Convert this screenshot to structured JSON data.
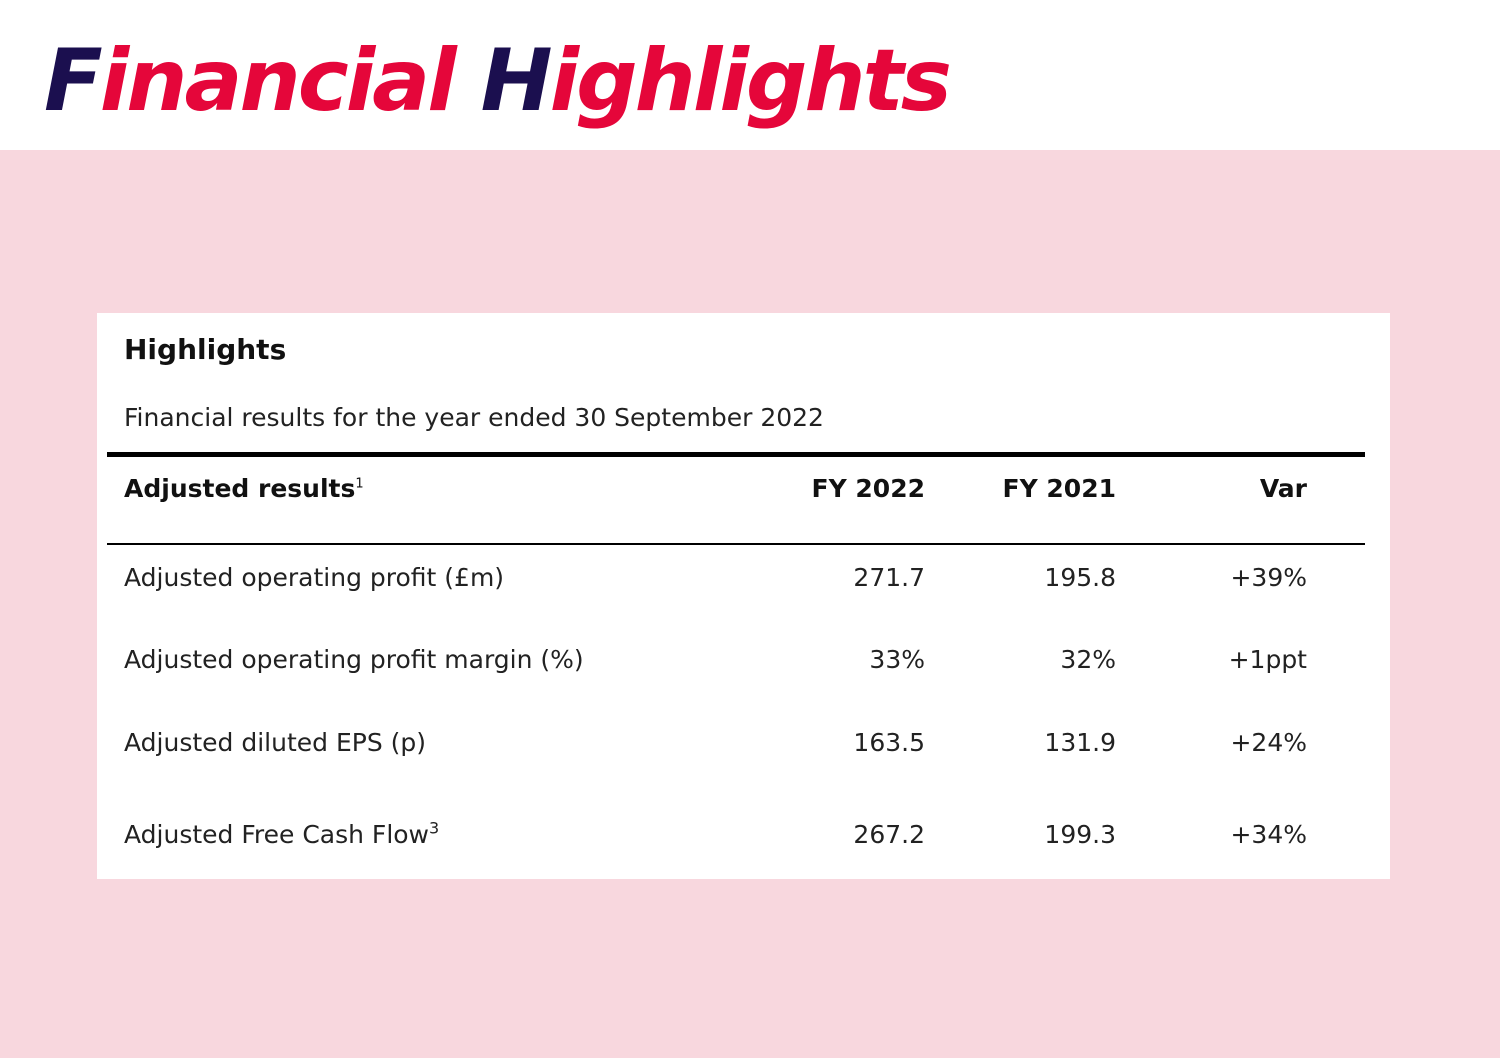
{
  "page": {
    "title_parts": [
      "F",
      "inancial ",
      "H",
      "ighlights"
    ]
  },
  "colors": {
    "title_dark": "#1b0f4f",
    "title_red": "#e5063a",
    "background_pink": "#f8d7de",
    "card": "#ffffff"
  },
  "card": {
    "heading": "Highlights",
    "subtitle": "Financial results for the year ended 30 September 2022"
  },
  "table": {
    "headers": {
      "label": "Adjusted results",
      "label_footnote": "1",
      "fy2022": "FY 2022",
      "fy2021": "FY 2021",
      "var": "Var"
    },
    "rows": [
      {
        "label": "Adjusted operating profit (£m)",
        "footnote": "",
        "fy2022": "271.7",
        "fy2021": "195.8",
        "var": "+39%"
      },
      {
        "label": "Adjusted operating profit margin (%)",
        "footnote": "",
        "fy2022": "33%",
        "fy2021": "32%",
        "var": "+1ppt"
      },
      {
        "label": "Adjusted diluted EPS (p)",
        "footnote": "",
        "fy2022": "163.5",
        "fy2021": "131.9",
        "var": "+24%"
      },
      {
        "label": "Adjusted Free Cash Flow",
        "footnote": "3",
        "fy2022": "267.2",
        "fy2021": "199.3",
        "var": "+34%"
      }
    ]
  }
}
